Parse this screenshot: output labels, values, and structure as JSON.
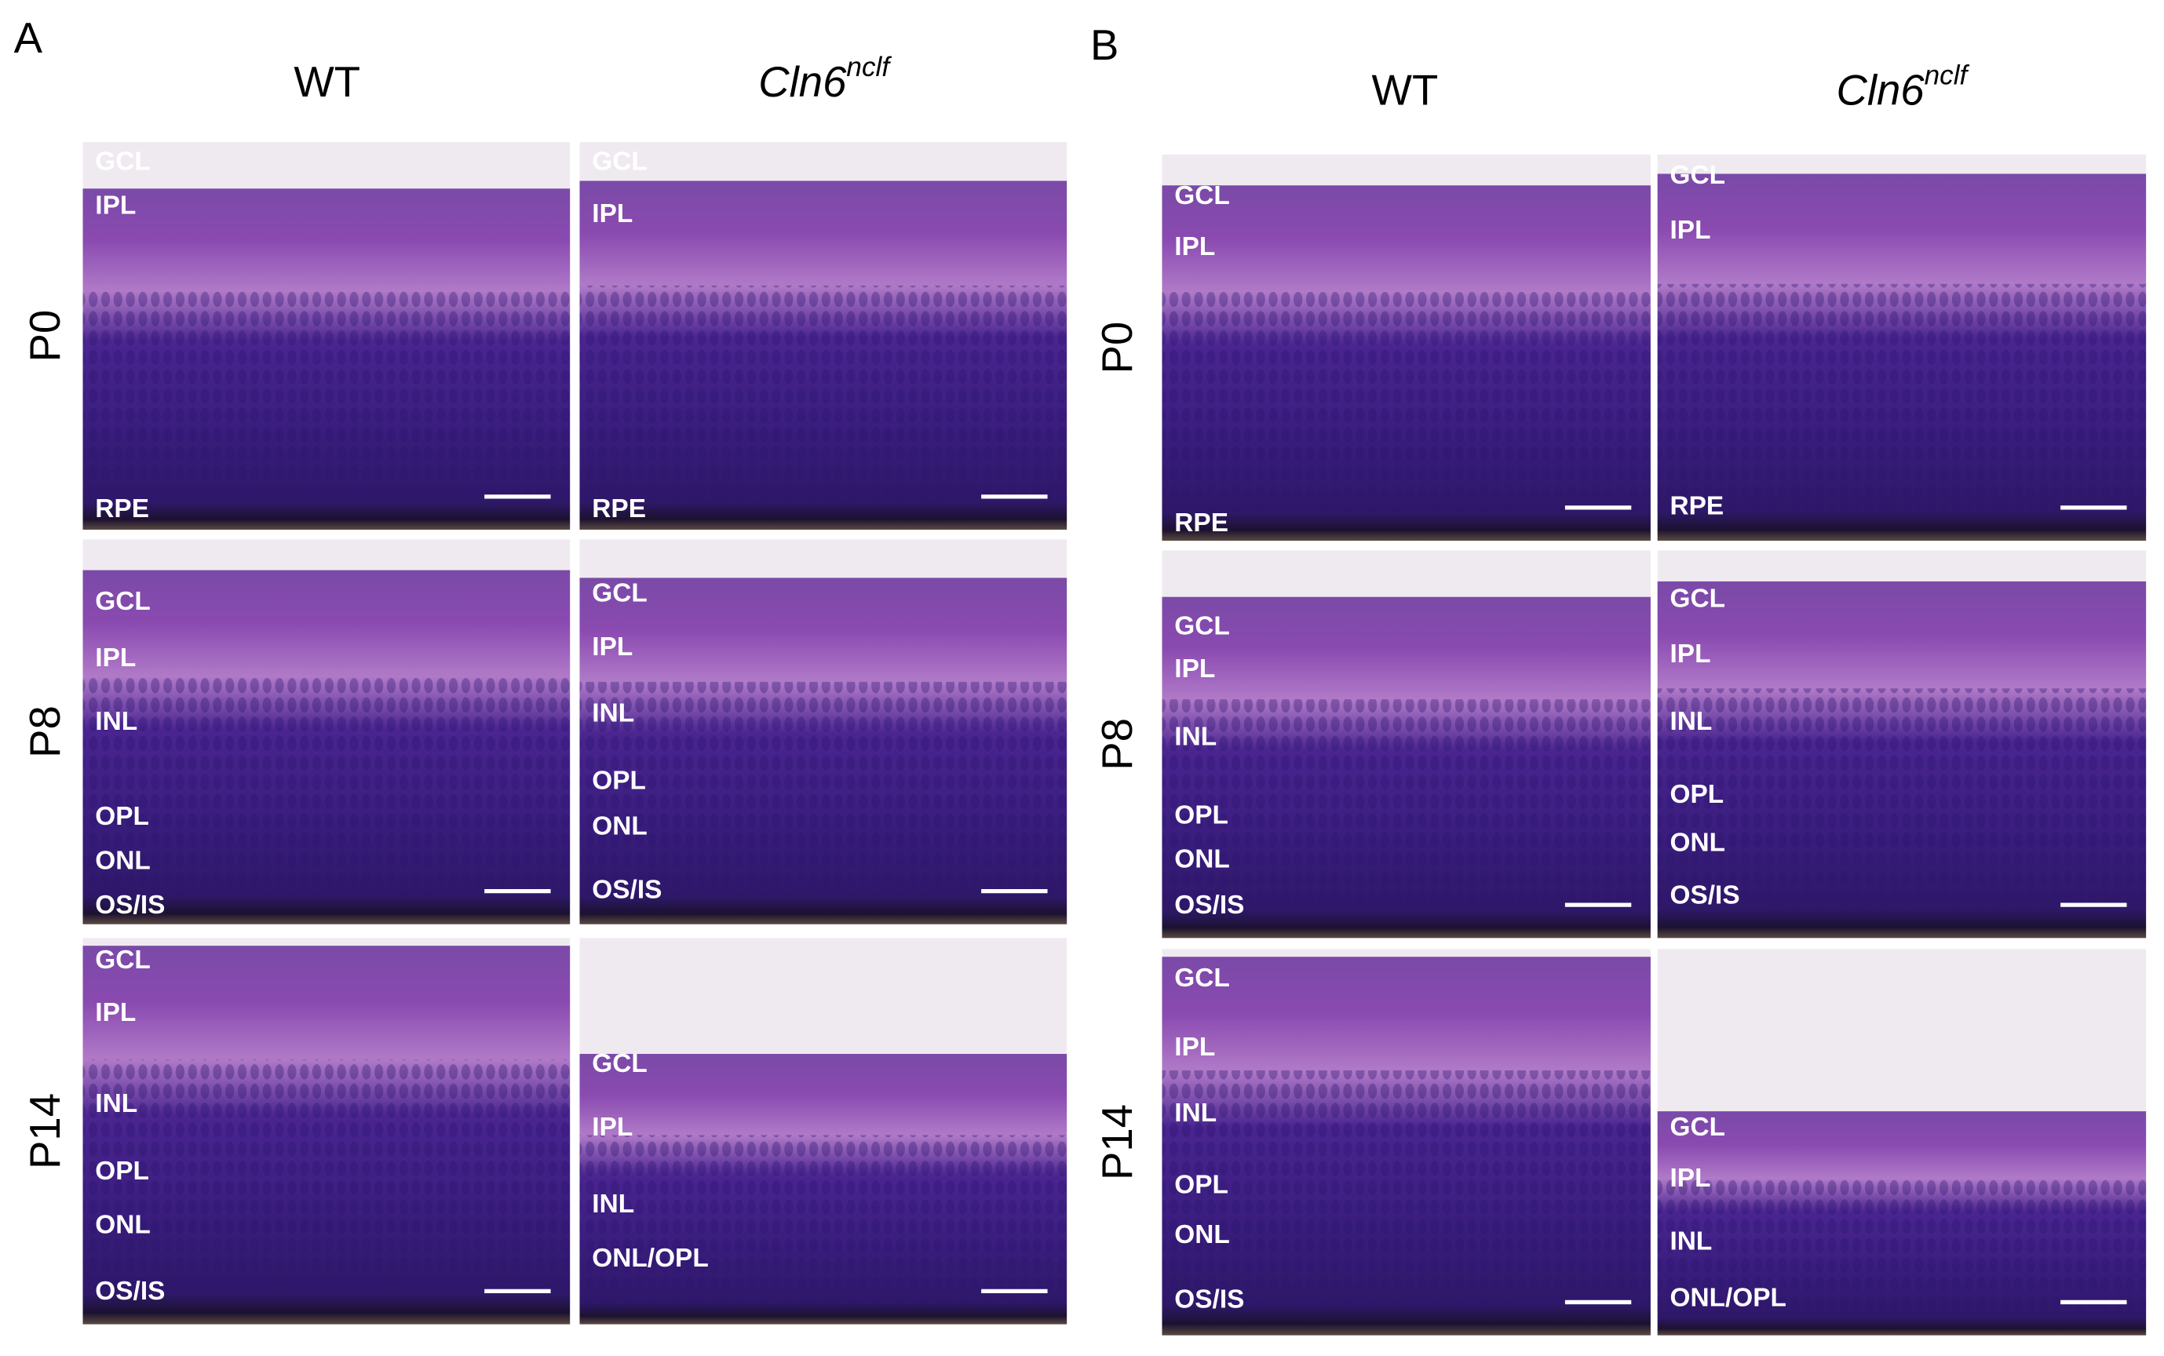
{
  "panels": [
    {
      "label": "A",
      "columns": [
        {
          "text": "WT"
        },
        {
          "text": "Cln6",
          "superscript": "nclf"
        }
      ],
      "rows": [
        "P0",
        "P8",
        "P14"
      ],
      "tiles": [
        [
          [
            "GCL",
            "IPL",
            "RPE"
          ],
          [
            "GCL",
            "IPL",
            "RPE"
          ]
        ],
        [
          [
            "GCL",
            "IPL",
            "INL",
            "OPL",
            "ONL",
            "OS/IS"
          ],
          [
            "GCL",
            "IPL",
            "INL",
            "OPL",
            "ONL",
            "OS/IS"
          ]
        ],
        [
          [
            "GCL",
            "IPL",
            "INL",
            "OPL",
            "ONL",
            "OS/IS"
          ],
          [
            "GCL",
            "IPL",
            "INL",
            "ONL/OPL"
          ]
        ]
      ]
    },
    {
      "label": "B",
      "columns": [
        {
          "text": "WT"
        },
        {
          "text": "Cln6",
          "superscript": "nclf"
        }
      ],
      "rows": [
        "P0",
        "P8",
        "P14"
      ],
      "tiles": [
        [
          [
            "GCL",
            "IPL",
            "RPE"
          ],
          [
            "GCL",
            "IPL",
            "RPE"
          ]
        ],
        [
          [
            "GCL",
            "IPL",
            "INL",
            "OPL",
            "ONL",
            "OS/IS"
          ],
          [
            "GCL",
            "IPL",
            "INL",
            "OPL",
            "ONL",
            "OS/IS"
          ]
        ],
        [
          [
            "GCL",
            "IPL",
            "INL",
            "OPL",
            "ONL",
            "OS/IS"
          ],
          [
            "GCL",
            "IPL",
            "INL",
            "ONL/OPL"
          ]
        ]
      ]
    }
  ]
}
